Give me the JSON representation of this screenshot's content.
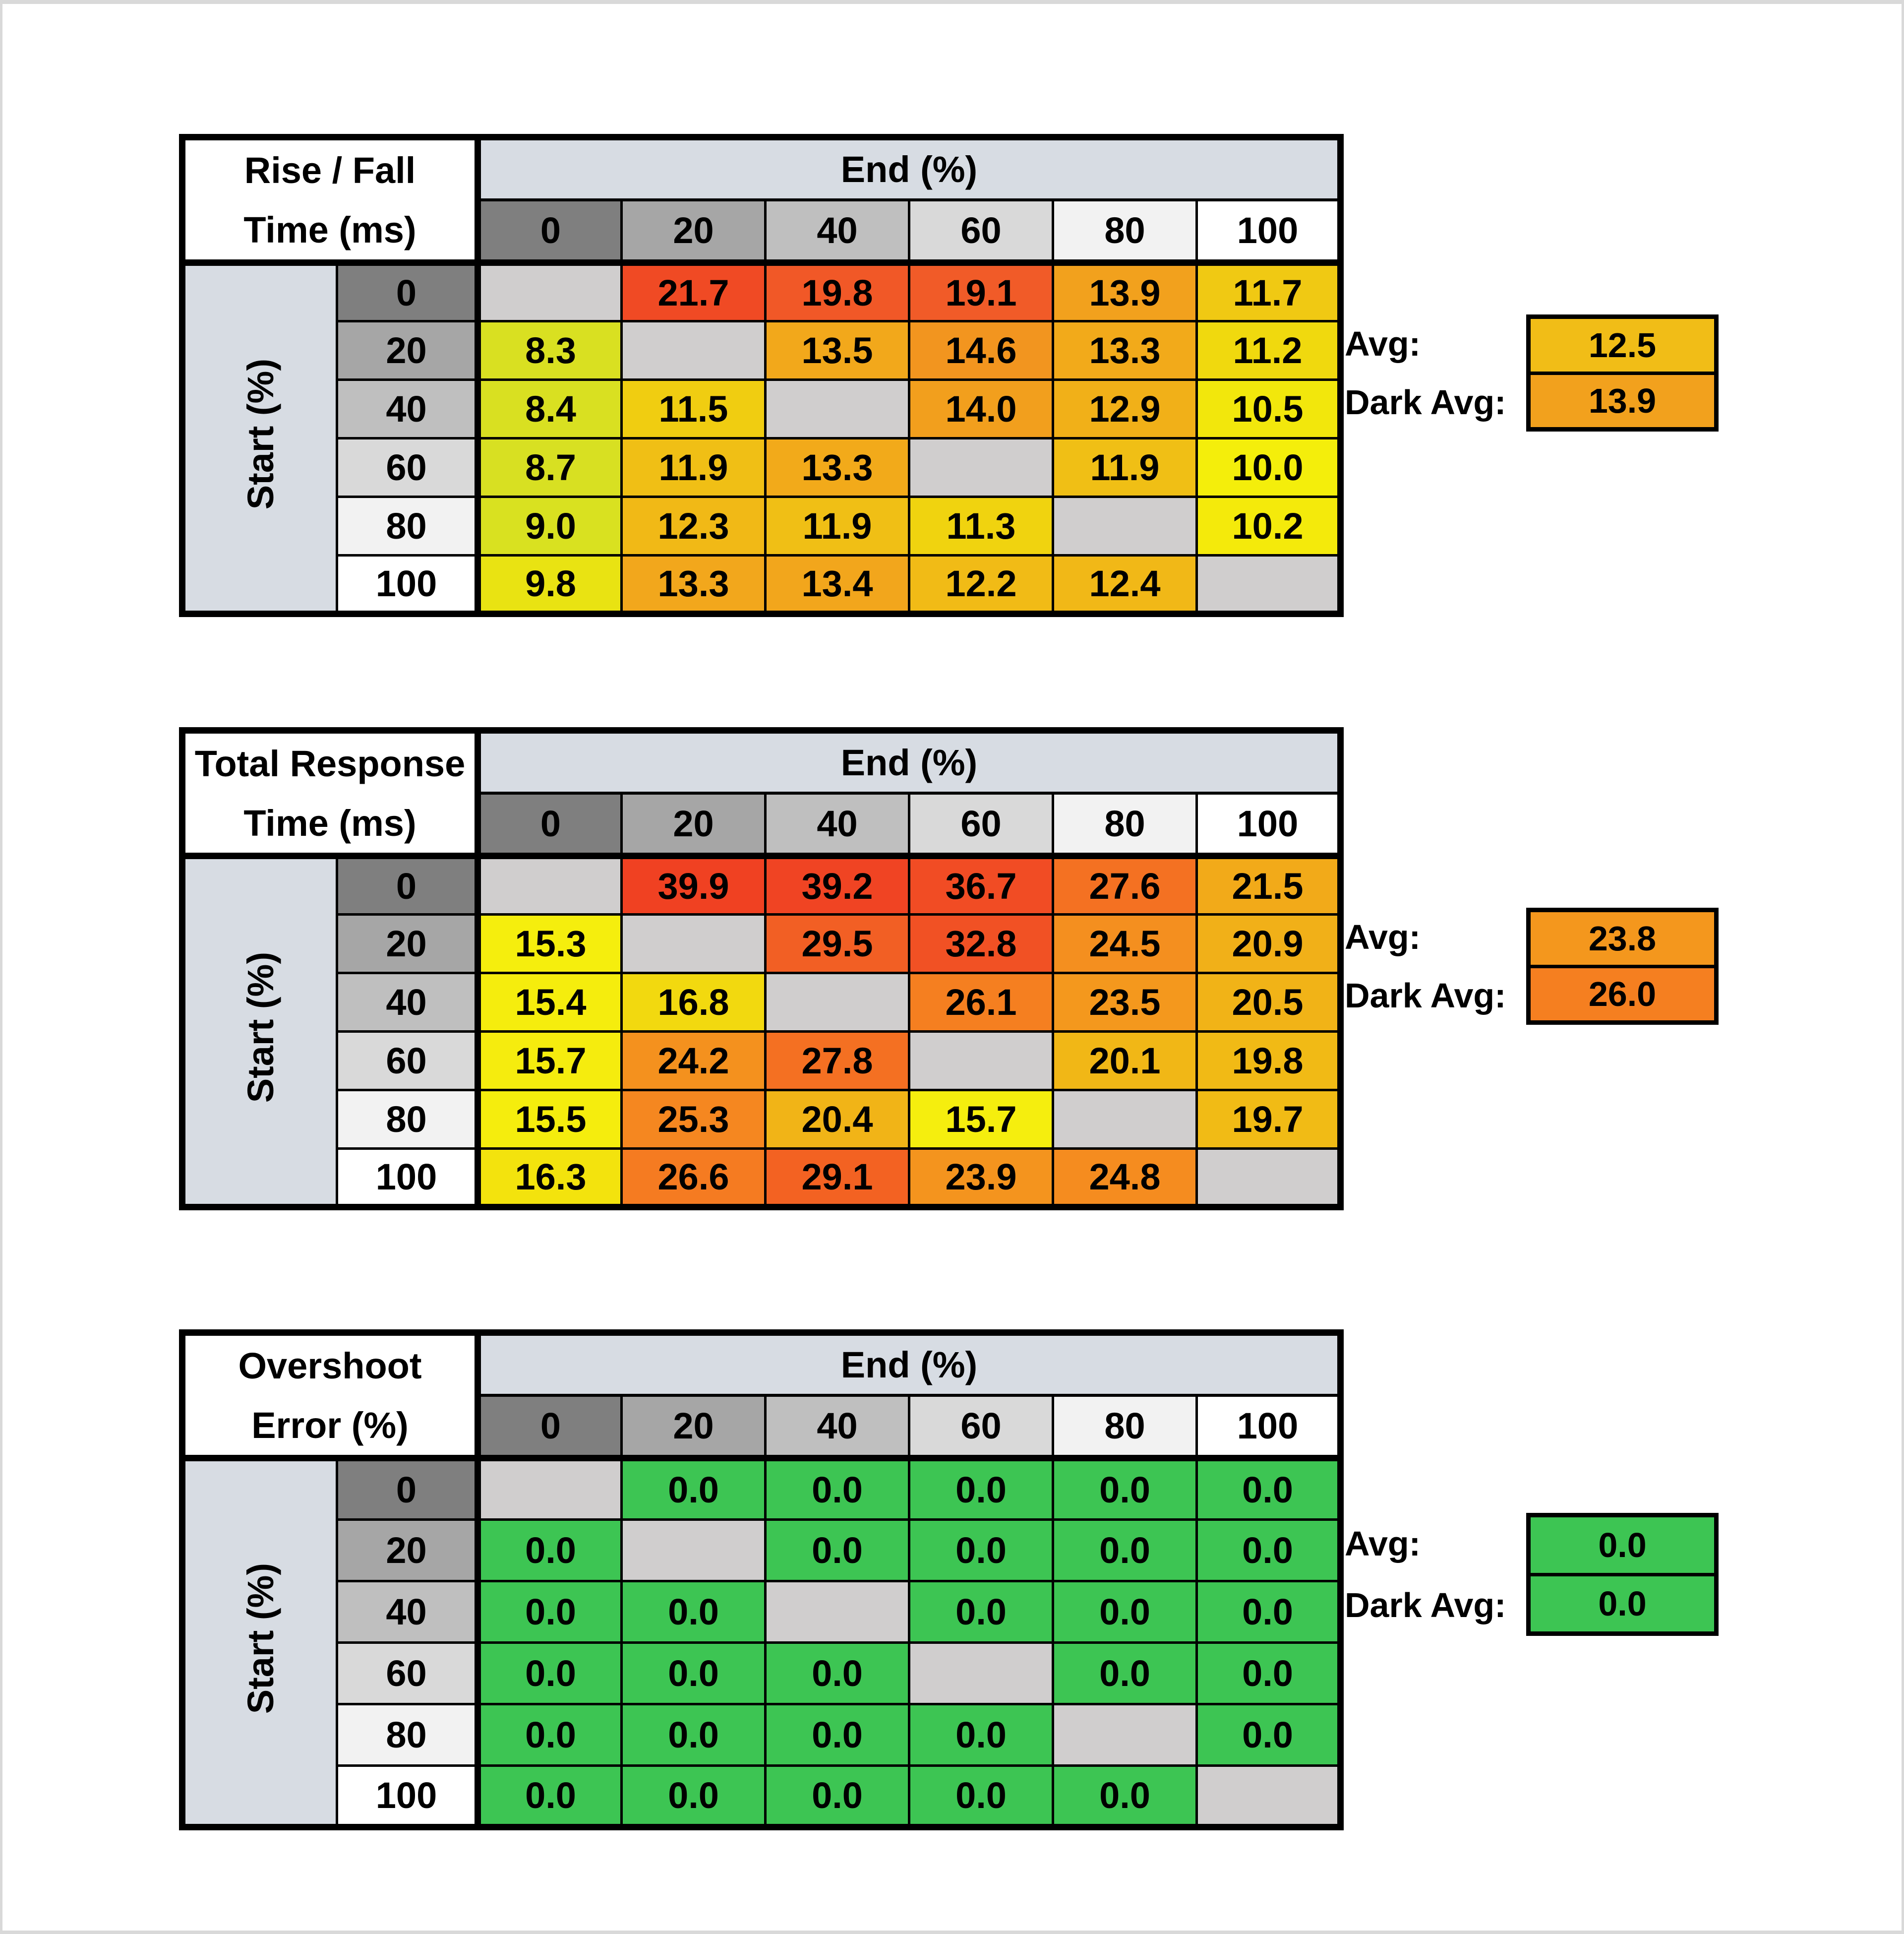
{
  "page": {
    "background": "#ffffff",
    "frame_color": "#d9d9d9"
  },
  "shared": {
    "avg_label": "Avg:",
    "dark_avg_label": "Dark Avg:",
    "header_cell_colors": [
      "#7f7f7f",
      "#a6a6a6",
      "#bfbfbf",
      "#d9d9d9",
      "#f2f2f2",
      "#ffffff"
    ],
    "band_color": "#d7dce3",
    "diagonal_color": "#d0cece",
    "border_color": "#000000",
    "text_color": "#000000"
  },
  "chart_data": [
    {
      "type": "heatmap",
      "name": "rise-fall-time",
      "title_lines": [
        "Rise / Fall",
        "Time (ms)"
      ],
      "x_title": "End (%)",
      "y_title": "Start (%)",
      "x_labels": [
        "0",
        "20",
        "40",
        "60",
        "80",
        "100"
      ],
      "y_labels": [
        "0",
        "20",
        "40",
        "60",
        "80",
        "100"
      ],
      "values": [
        [
          null,
          "21.7",
          "19.8",
          "19.1",
          "13.9",
          "11.7"
        ],
        [
          "8.3",
          null,
          "13.5",
          "14.6",
          "13.3",
          "11.2"
        ],
        [
          "8.4",
          "11.5",
          null,
          "14.0",
          "12.9",
          "10.5"
        ],
        [
          "8.7",
          "11.9",
          "13.3",
          null,
          "11.9",
          "10.0"
        ],
        [
          "9.0",
          "12.3",
          "11.9",
          "11.3",
          null,
          "10.2"
        ],
        [
          "9.8",
          "13.3",
          "13.4",
          "12.2",
          "12.4",
          null
        ]
      ],
      "cell_colors": [
        [
          null,
          "#f04a24",
          "#f15827",
          "#f15b28",
          "#f2a11d",
          "#f0c913"
        ],
        [
          "#d9e021",
          null,
          "#f2a81b",
          "#f2951f",
          "#f2aa1a",
          "#f0d90e"
        ],
        [
          "#d9e021",
          "#f0cd11",
          null,
          "#f29f1d",
          "#f1b018",
          "#f2e70c"
        ],
        [
          "#d8e022",
          "#f0bf15",
          "#f2aa1a",
          null,
          "#f0bf15",
          "#f4ee0b"
        ],
        [
          "#d9e120",
          "#f1b916",
          "#f0bf15",
          "#f0d30f",
          null,
          "#f4ea0b"
        ],
        [
          "#e9e312",
          "#f2a71c",
          "#f2a61c",
          "#f1bb16",
          "#f1b817",
          null
        ]
      ],
      "avg": {
        "value": "12.5",
        "color": "#f1bd17"
      },
      "dark_avg": {
        "value": "13.9",
        "color": "#f2a11d"
      }
    },
    {
      "type": "heatmap",
      "name": "total-response-time",
      "title_lines": [
        "Total Response",
        "Time (ms)"
      ],
      "x_title": "End (%)",
      "y_title": "Start (%)",
      "x_labels": [
        "0",
        "20",
        "40",
        "60",
        "80",
        "100"
      ],
      "y_labels": [
        "0",
        "20",
        "40",
        "60",
        "80",
        "100"
      ],
      "values": [
        [
          null,
          "39.9",
          "39.2",
          "36.7",
          "27.6",
          "21.5"
        ],
        [
          "15.3",
          null,
          "29.5",
          "32.8",
          "24.5",
          "20.9"
        ],
        [
          "15.4",
          "16.8",
          null,
          "26.1",
          "23.5",
          "20.5"
        ],
        [
          "15.7",
          "24.2",
          "27.8",
          null,
          "20.1",
          "19.8"
        ],
        [
          "15.5",
          "25.3",
          "20.4",
          "15.7",
          null,
          "19.7"
        ],
        [
          "16.3",
          "26.6",
          "29.1",
          "23.9",
          "24.8",
          null
        ]
      ],
      "cell_colors": [
        [
          null,
          "#f04122",
          "#f04423",
          "#f14c24",
          "#f47122",
          "#f2aa19"
        ],
        [
          "#f5ee0d",
          null,
          "#f25f24",
          "#f15124",
          "#f48f1f",
          "#f1b018"
        ],
        [
          "#f5ed0d",
          "#f2d90f",
          null,
          "#f57f20",
          "#f4981d",
          "#f1b317"
        ],
        [
          "#f5ec0e",
          "#f4911e",
          "#f47022",
          null,
          "#f1b716",
          "#f1ba15"
        ],
        [
          "#f5ed0d",
          "#f58720",
          "#f1b417",
          "#f5ee0e",
          null,
          "#f1bb15"
        ],
        [
          "#f3e30d",
          "#f57b21",
          "#f36222",
          "#f4941e",
          "#f58c1f",
          null
        ]
      ],
      "avg": {
        "value": "23.8",
        "color": "#f4971d"
      },
      "dark_avg": {
        "value": "26.0",
        "color": "#f57f20"
      }
    },
    {
      "type": "heatmap",
      "name": "overshoot-error",
      "title_lines": [
        "Overshoot",
        "Error (%)"
      ],
      "x_title": "End (%)",
      "y_title": "Start (%)",
      "x_labels": [
        "0",
        "20",
        "40",
        "60",
        "80",
        "100"
      ],
      "y_labels": [
        "0",
        "20",
        "40",
        "60",
        "80",
        "100"
      ],
      "values": [
        [
          null,
          "0.0",
          "0.0",
          "0.0",
          "0.0",
          "0.0"
        ],
        [
          "0.0",
          null,
          "0.0",
          "0.0",
          "0.0",
          "0.0"
        ],
        [
          "0.0",
          "0.0",
          null,
          "0.0",
          "0.0",
          "0.0"
        ],
        [
          "0.0",
          "0.0",
          "0.0",
          null,
          "0.0",
          "0.0"
        ],
        [
          "0.0",
          "0.0",
          "0.0",
          "0.0",
          null,
          "0.0"
        ],
        [
          "0.0",
          "0.0",
          "0.0",
          "0.0",
          "0.0",
          null
        ]
      ],
      "cell_colors": [
        [
          null,
          "#3dc553",
          "#3dc553",
          "#3dc553",
          "#3dc553",
          "#3dc553"
        ],
        [
          "#3dc553",
          null,
          "#3dc553",
          "#3dc553",
          "#3dc553",
          "#3dc553"
        ],
        [
          "#3dc553",
          "#3dc553",
          null,
          "#3dc553",
          "#3dc553",
          "#3dc553"
        ],
        [
          "#3dc553",
          "#3dc553",
          "#3dc553",
          null,
          "#3dc553",
          "#3dc553"
        ],
        [
          "#3dc553",
          "#3dc553",
          "#3dc553",
          "#3dc553",
          null,
          "#3dc553"
        ],
        [
          "#3dc553",
          "#3dc553",
          "#3dc553",
          "#3dc553",
          "#3dc553",
          null
        ]
      ],
      "avg": {
        "value": "0.0",
        "color": "#3dc553"
      },
      "dark_avg": {
        "value": "0.0",
        "color": "#3dc553"
      }
    }
  ]
}
